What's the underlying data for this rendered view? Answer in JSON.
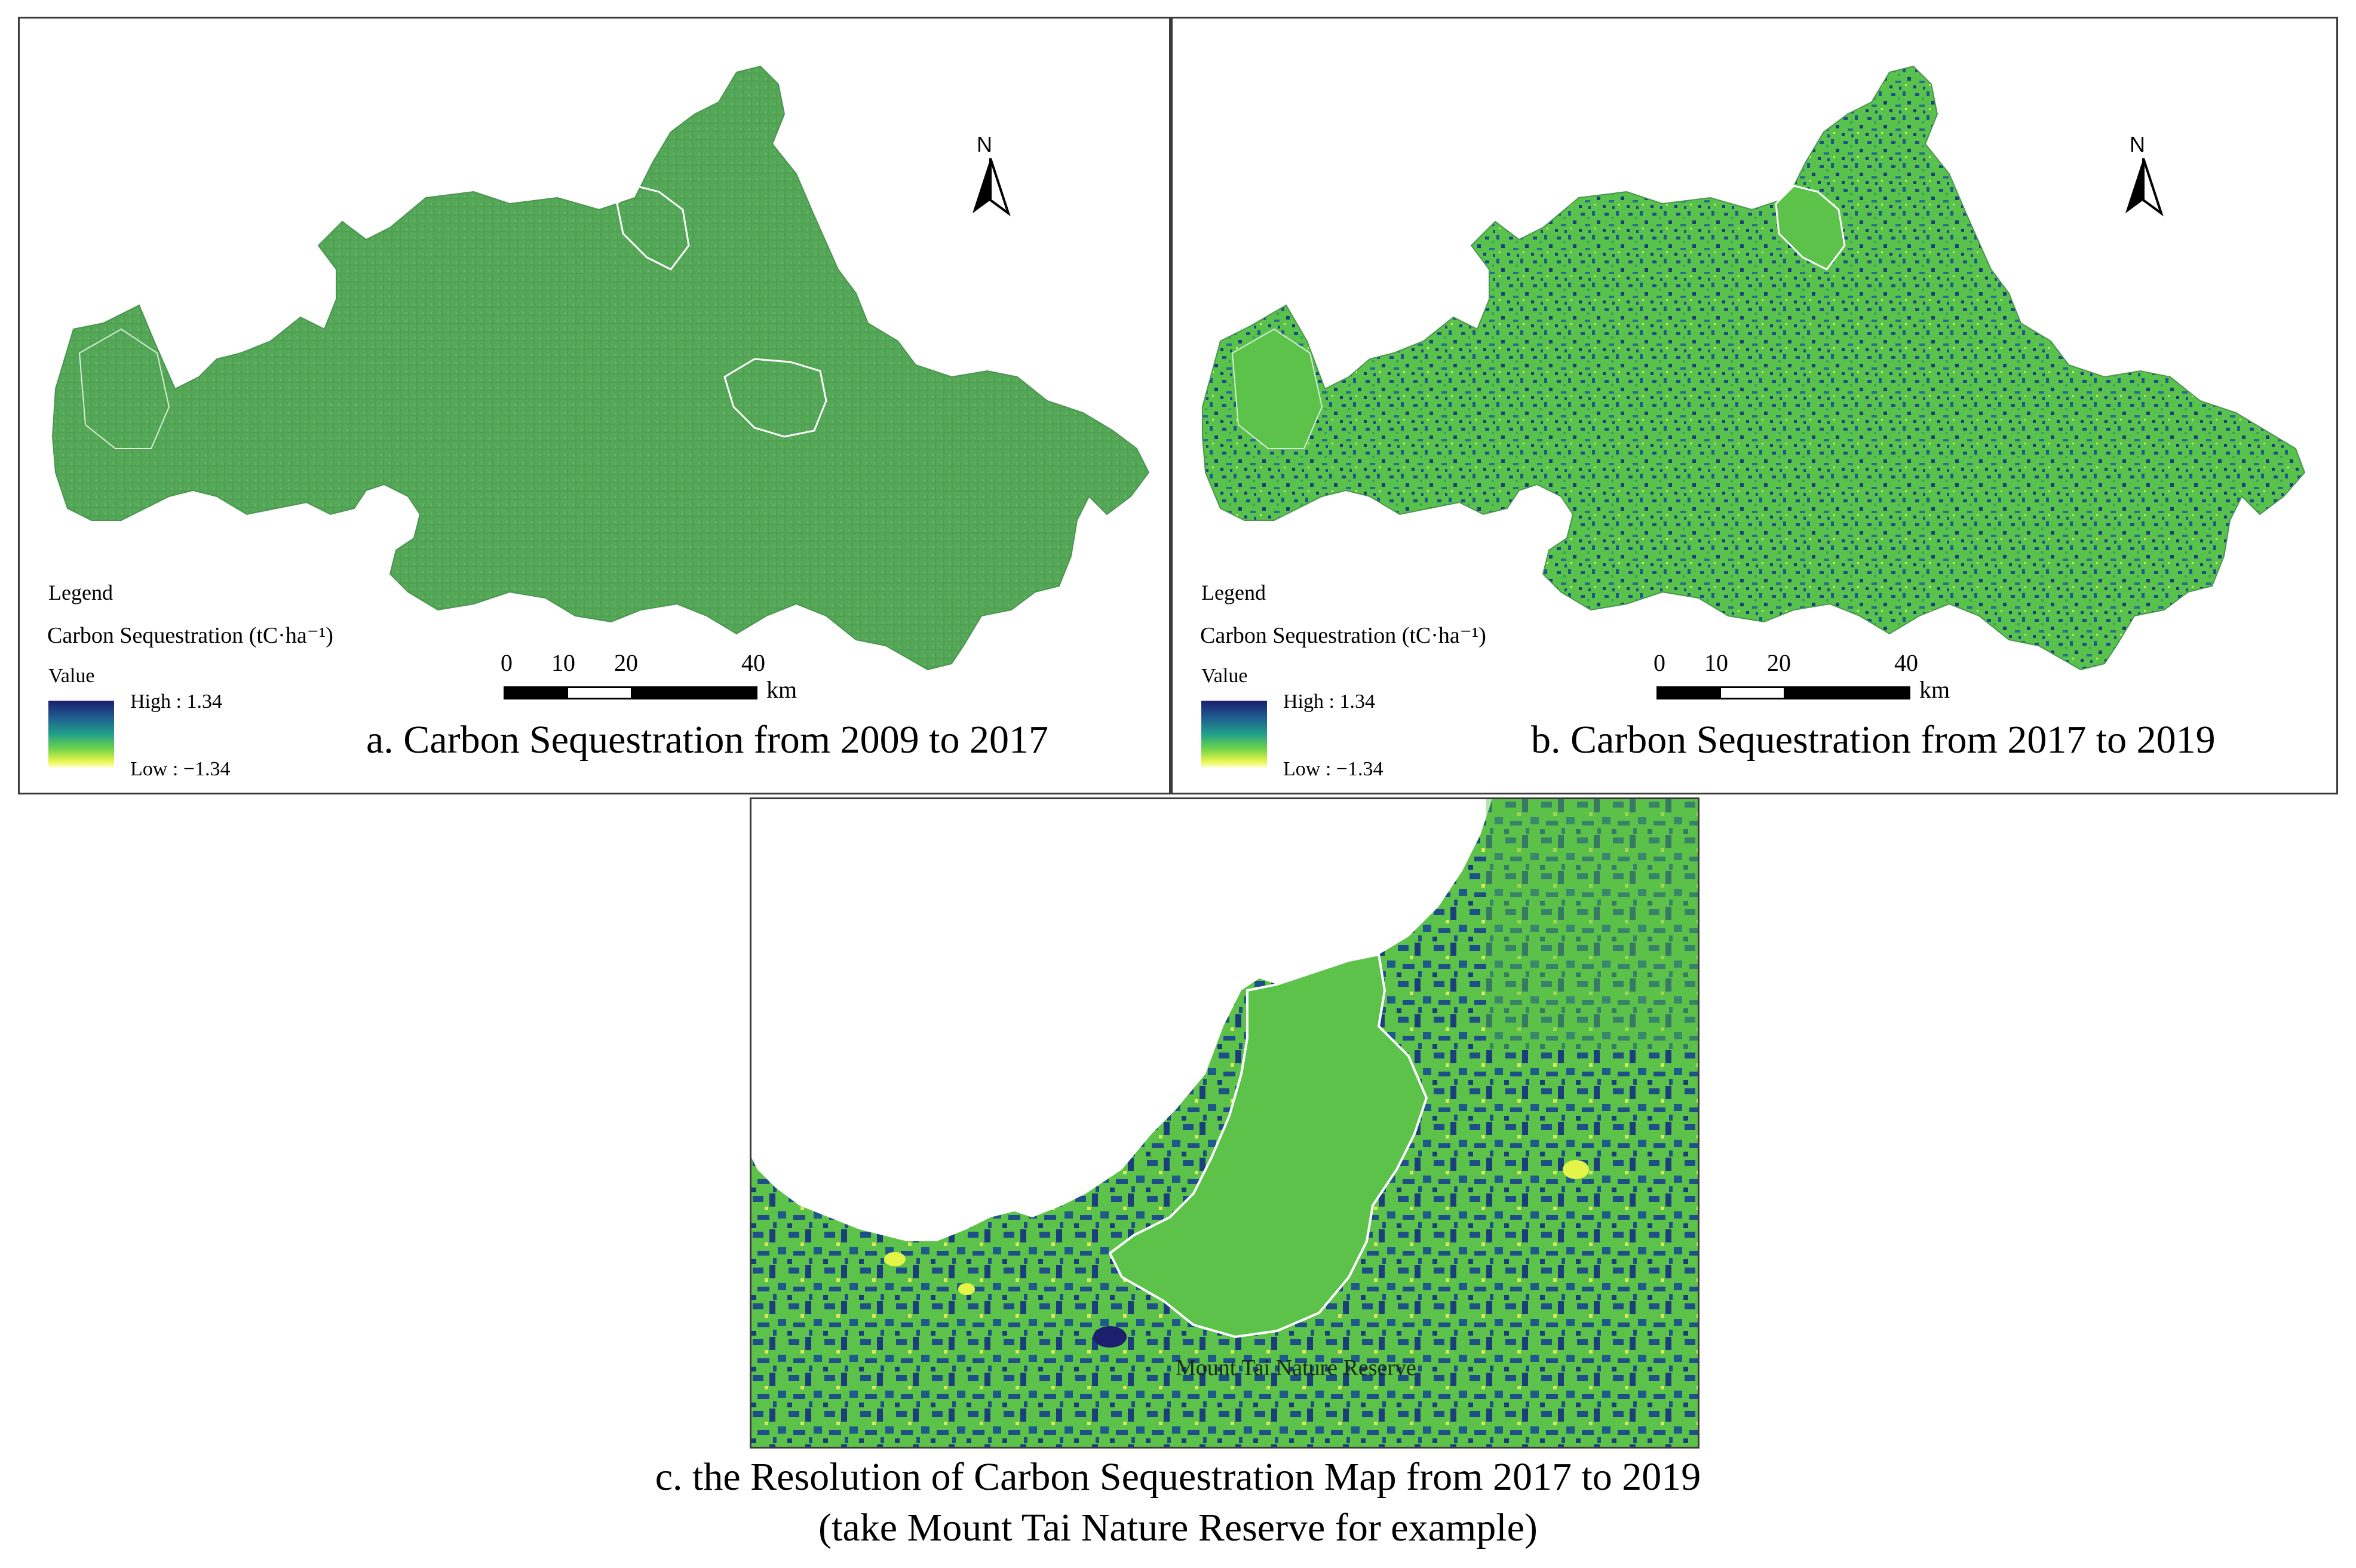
{
  "colors": {
    "high": "#1b1f6e",
    "mid": "#20a08a",
    "green": "#5cc24a",
    "low": "#ffffcc",
    "panel_a_fill": "#55a858",
    "panel_b_fill": "#58c24c",
    "panel_b_dark": "#1e4f86",
    "reserve_outline": "#ffffff"
  },
  "legend": {
    "title": "Legend",
    "subtitle": "Carbon Sequestration (tC·ha⁻¹)",
    "value_label": "Value",
    "high_label": "High : 1.34",
    "low_label": "Low : −1.34",
    "high": 1.34,
    "low": -1.34
  },
  "north_arrow": {
    "label": "N",
    "icon": "north-arrow-icon"
  },
  "scale_bar": {
    "ticks": [
      "0",
      "10",
      "20",
      "40"
    ],
    "unit": "km"
  },
  "panels": [
    {
      "id": "a",
      "caption": "a. Carbon Sequestration from 2009 to 2017"
    },
    {
      "id": "b",
      "caption": "b. Carbon Sequestration from 2017 to 2019"
    },
    {
      "id": "c",
      "reserve_label": "Mount Tai Nature Reserve"
    }
  ],
  "bottom_caption": {
    "line1": "c. the Resolution of  Carbon Sequestration Map from 2017 to 2019",
    "line2": "(take Mount Tai Nature Reserve for example)"
  }
}
